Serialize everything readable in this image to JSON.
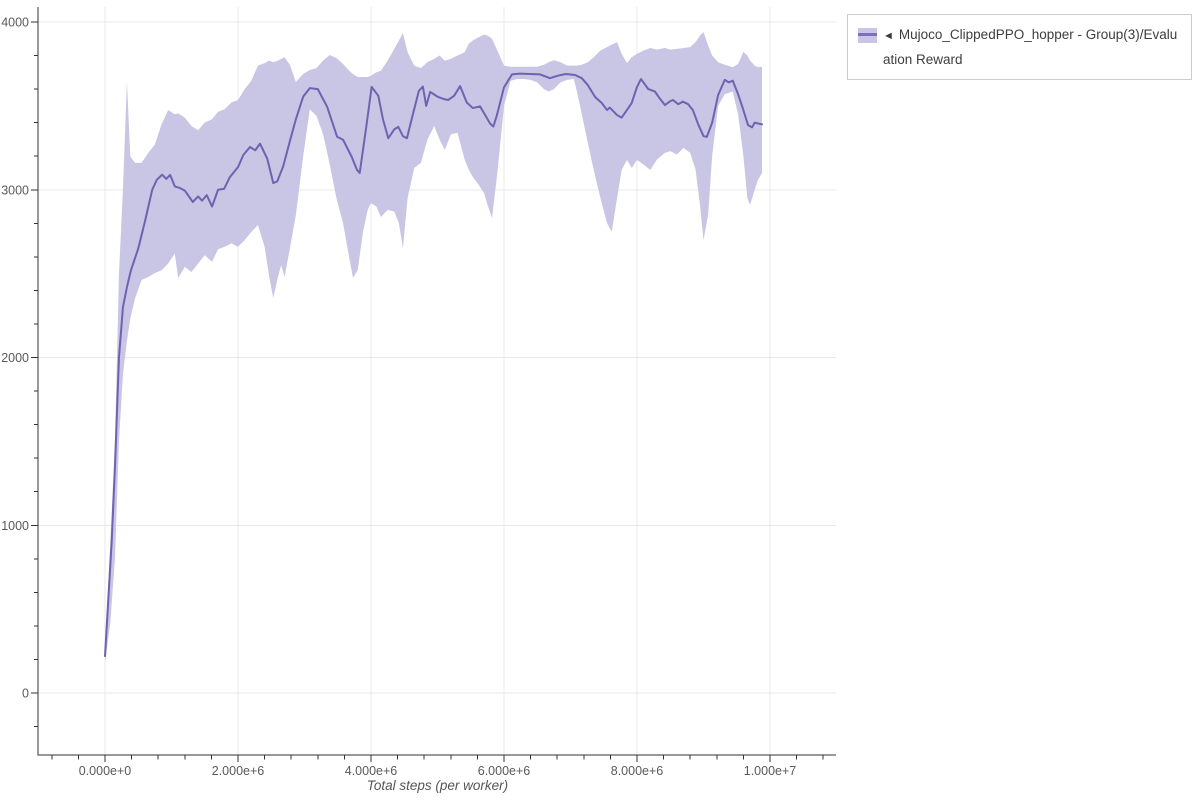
{
  "legend": {
    "marker_glyph": "◄",
    "label": "Mujoco_ClippedPPO_hopper - Group(3)/Evaluation Reward"
  },
  "colors": {
    "line": "#6e63b0",
    "band": "#c9c5e4",
    "grid": "#e8e8e8",
    "axis": "#333333",
    "tick": "#333333",
    "tick_label": "#5a5a5a",
    "axis_title": "#555555",
    "legend_border": "#cccccc",
    "legend_text": "#3d3d3d",
    "legend_swatch_line": "#7b70bc",
    "background": "#ffffff"
  },
  "chart_data": {
    "type": "line",
    "title": "",
    "xlabel": "Total steps (per worker)",
    "ylabel": "",
    "grid": true,
    "legend_position": "top-right-outside",
    "x_range": [
      -1000000,
      11000000
    ],
    "y_range": [
      -370,
      4095
    ],
    "x_ticks": {
      "major_values": [
        0,
        2000000,
        4000000,
        6000000,
        8000000,
        10000000
      ],
      "major_labels": [
        "0.000e+0",
        "2.000e+6",
        "4.000e+6",
        "6.000e+6",
        "8.000e+6",
        "1.000e+7"
      ],
      "minor_step": 400000
    },
    "y_ticks": {
      "major_values": [
        0,
        1000,
        2000,
        3000,
        4000
      ],
      "major_labels": [
        "0",
        "1000",
        "2000",
        "3000",
        "4000"
      ],
      "minor_step": 200
    },
    "series": [
      {
        "name": "Mujoco_ClippedPPO_hopper - Group(3)/Evaluation Reward",
        "type": "mean_line_with_std_band",
        "x": [
          0,
          50000,
          100000,
          150000,
          210000,
          270000,
          330000,
          390000,
          500000,
          600000,
          710000,
          780000,
          860000,
          920000,
          980000,
          1050000,
          1130000,
          1200000,
          1280000,
          1320000,
          1400000,
          1460000,
          1530000,
          1610000,
          1700000,
          1790000,
          1880000,
          2000000,
          2080000,
          2180000,
          2260000,
          2330000,
          2440000,
          2530000,
          2590000,
          2680000,
          2780000,
          2870000,
          2980000,
          3080000,
          3200000,
          3340000,
          3490000,
          3580000,
          3710000,
          3790000,
          3830000,
          3920000,
          4010000,
          4110000,
          4180000,
          4260000,
          4350000,
          4410000,
          4480000,
          4540000,
          4630000,
          4720000,
          4780000,
          4830000,
          4890000,
          5000000,
          5100000,
          5160000,
          5250000,
          5340000,
          5440000,
          5530000,
          5640000,
          5710000,
          5790000,
          5840000,
          5890000,
          6000000,
          6120000,
          6240000,
          6390000,
          6540000,
          6690000,
          6810000,
          6930000,
          7070000,
          7170000,
          7260000,
          7370000,
          7470000,
          7550000,
          7590000,
          7700000,
          7770000,
          7920000,
          8000000,
          8060000,
          8170000,
          8270000,
          8350000,
          8420000,
          8500000,
          8540000,
          8620000,
          8690000,
          8770000,
          8840000,
          8920000,
          9000000,
          9050000,
          9130000,
          9220000,
          9320000,
          9380000,
          9440000,
          9520000,
          9590000,
          9670000,
          9730000,
          9770000,
          9820000,
          9880000
        ],
        "mean": [
          220,
          560,
          900,
          1350,
          2000,
          2300,
          2420,
          2520,
          2650,
          2810,
          3000,
          3060,
          3090,
          3065,
          3088,
          3020,
          3010,
          2995,
          2950,
          2927,
          2960,
          2935,
          2968,
          2900,
          3000,
          3005,
          3077,
          3135,
          3207,
          3255,
          3235,
          3275,
          3185,
          3040,
          3050,
          3140,
          3290,
          3420,
          3555,
          3606,
          3600,
          3495,
          3316,
          3298,
          3196,
          3118,
          3100,
          3350,
          3613,
          3560,
          3420,
          3307,
          3360,
          3375,
          3320,
          3307,
          3450,
          3590,
          3615,
          3500,
          3583,
          3555,
          3540,
          3535,
          3560,
          3618,
          3520,
          3487,
          3497,
          3450,
          3395,
          3377,
          3440,
          3610,
          3688,
          3692,
          3690,
          3688,
          3665,
          3680,
          3690,
          3684,
          3665,
          3624,
          3553,
          3517,
          3475,
          3490,
          3445,
          3430,
          3517,
          3613,
          3660,
          3600,
          3585,
          3540,
          3505,
          3528,
          3535,
          3510,
          3525,
          3510,
          3475,
          3390,
          3320,
          3315,
          3400,
          3565,
          3655,
          3640,
          3650,
          3570,
          3487,
          3385,
          3372,
          3400,
          3395,
          3390
        ],
        "band_x": [
          0,
          80000,
          150000,
          210000,
          270000,
          330000,
          380000,
          450000,
          550000,
          650000,
          750000,
          850000,
          950000,
          1050000,
          1100000,
          1200000,
          1300000,
          1400000,
          1500000,
          1610000,
          1700000,
          1800000,
          1900000,
          2000000,
          2100000,
          2200000,
          2300000,
          2400000,
          2470000,
          2530000,
          2600000,
          2650000,
          2700000,
          2780000,
          2870000,
          2980000,
          3080000,
          3180000,
          3280000,
          3380000,
          3480000,
          3580000,
          3670000,
          3730000,
          3800000,
          3880000,
          3950000,
          4000000,
          4080000,
          4150000,
          4250000,
          4350000,
          4420000,
          4480000,
          4550000,
          4650000,
          4750000,
          4850000,
          4950000,
          5030000,
          5110000,
          5200000,
          5300000,
          5410000,
          5470000,
          5530000,
          5600000,
          5700000,
          5760000,
          5820000,
          5900000,
          6000000,
          6100000,
          6200000,
          6300000,
          6400000,
          6500000,
          6600000,
          6670000,
          6750000,
          6850000,
          6950000,
          7050000,
          7100000,
          7170000,
          7260000,
          7350000,
          7450000,
          7550000,
          7620000,
          7700000,
          7770000,
          7850000,
          7920000,
          8000000,
          8100000,
          8200000,
          8300000,
          8420000,
          8500000,
          8600000,
          8700000,
          8800000,
          8880000,
          8950000,
          9000000,
          9070000,
          9130000,
          9220000,
          9320000,
          9440000,
          9520000,
          9600000,
          9660000,
          9700000,
          9770000,
          9820000,
          9880000
        ],
        "band_upper": [
          270,
          900,
          1500,
          2500,
          3000,
          3645,
          3200,
          3160,
          3160,
          3220,
          3270,
          3390,
          3475,
          3450,
          3455,
          3430,
          3380,
          3355,
          3400,
          3420,
          3465,
          3480,
          3520,
          3535,
          3600,
          3650,
          3740,
          3755,
          3770,
          3760,
          3770,
          3780,
          3790,
          3745,
          3642,
          3690,
          3714,
          3725,
          3770,
          3803,
          3785,
          3750,
          3710,
          3690,
          3672,
          3672,
          3672,
          3680,
          3700,
          3710,
          3770,
          3840,
          3890,
          3934,
          3820,
          3740,
          3726,
          3761,
          3780,
          3800,
          3770,
          3780,
          3800,
          3820,
          3870,
          3890,
          3905,
          3925,
          3918,
          3900,
          3830,
          3740,
          3733,
          3733,
          3733,
          3733,
          3733,
          3745,
          3760,
          3773,
          3760,
          3740,
          3740,
          3740,
          3745,
          3760,
          3790,
          3830,
          3850,
          3865,
          3880,
          3810,
          3755,
          3790,
          3810,
          3830,
          3845,
          3835,
          3845,
          3835,
          3840,
          3845,
          3850,
          3880,
          3920,
          3940,
          3860,
          3800,
          3760,
          3745,
          3730,
          3750,
          3822,
          3800,
          3770,
          3740,
          3730,
          3733
        ],
        "band_lower": [
          180,
          420,
          800,
          1500,
          1900,
          2100,
          2230,
          2350,
          2462,
          2480,
          2504,
          2520,
          2560,
          2620,
          2473,
          2540,
          2510,
          2560,
          2610,
          2570,
          2645,
          2660,
          2680,
          2660,
          2700,
          2748,
          2790,
          2660,
          2480,
          2355,
          2480,
          2550,
          2480,
          2650,
          2850,
          3200,
          3480,
          3440,
          3330,
          3150,
          2950,
          2800,
          2600,
          2474,
          2520,
          2750,
          2880,
          2921,
          2900,
          2838,
          2880,
          2870,
          2800,
          2653,
          2950,
          3130,
          3160,
          3300,
          3380,
          3300,
          3237,
          3330,
          3340,
          3177,
          3120,
          3077,
          3040,
          2980,
          2900,
          2832,
          3100,
          3500,
          3650,
          3660,
          3660,
          3655,
          3640,
          3600,
          3585,
          3600,
          3640,
          3655,
          3660,
          3580,
          3450,
          3280,
          3118,
          2950,
          2800,
          2750,
          2950,
          3120,
          3177,
          3130,
          3177,
          3150,
          3118,
          3180,
          3220,
          3230,
          3210,
          3250,
          3220,
          3120,
          2900,
          2700,
          2850,
          3200,
          3500,
          3570,
          3585,
          3450,
          3200,
          2950,
          2909,
          3000,
          3060,
          3100
        ]
      }
    ]
  }
}
